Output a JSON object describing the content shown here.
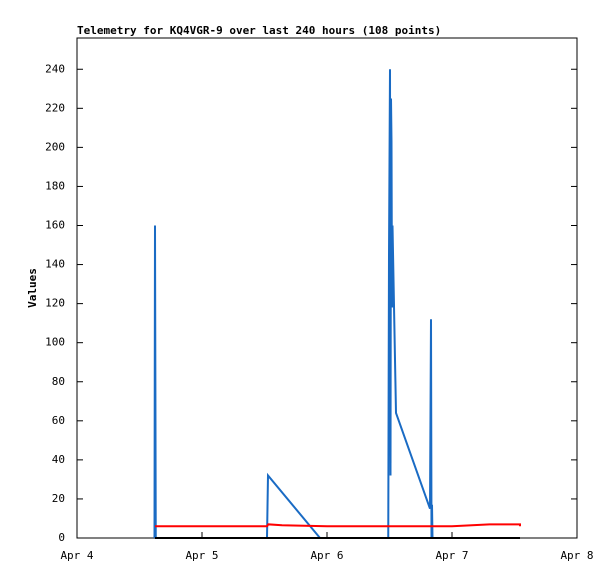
{
  "chart_data": {
    "type": "line",
    "title": "Telemetry for KQ4VGR-9 over last 240 hours (108 points)",
    "y_label": "Values",
    "xlim": [
      4,
      8
    ],
    "xticks": [
      {
        "value": 4,
        "label": "Apr 4"
      },
      {
        "value": 5,
        "label": "Apr 5"
      },
      {
        "value": 6,
        "label": "Apr 6"
      },
      {
        "value": 7,
        "label": "Apr 7"
      },
      {
        "value": 8,
        "label": "Apr 8"
      }
    ],
    "ylim": [
      0,
      256
    ],
    "yticks": [
      0,
      20,
      40,
      60,
      80,
      100,
      120,
      140,
      160,
      180,
      200,
      220,
      240
    ],
    "grid": false,
    "series": [
      {
        "color": "#1a6bc4",
        "x": [
          4.62,
          4.624,
          4.63,
          5.52,
          5.528,
          5.944,
          6.49,
          6.496,
          6.504,
          6.508,
          6.512,
          6.516,
          6.52,
          6.524,
          6.552,
          6.824,
          6.832,
          6.836,
          6.84,
          6.844
        ],
        "values": [
          0,
          160,
          0,
          0,
          32,
          0,
          0,
          145,
          240,
          32,
          225,
          203,
          118,
          160,
          64,
          15,
          112,
          0,
          17,
          0
        ]
      },
      {
        "color": "#ff0000",
        "x": [
          4.624,
          4.76,
          5.52,
          5.53,
          5.64,
          6.0,
          6.5,
          7.0,
          7.3,
          7.544,
          7.544
        ],
        "values": [
          6,
          6,
          6,
          7,
          6.5,
          6,
          6,
          6,
          7,
          7,
          6
        ]
      },
      {
        "color": "#000000",
        "x": [
          4.624,
          7.544
        ],
        "values": [
          0,
          0
        ]
      }
    ]
  }
}
